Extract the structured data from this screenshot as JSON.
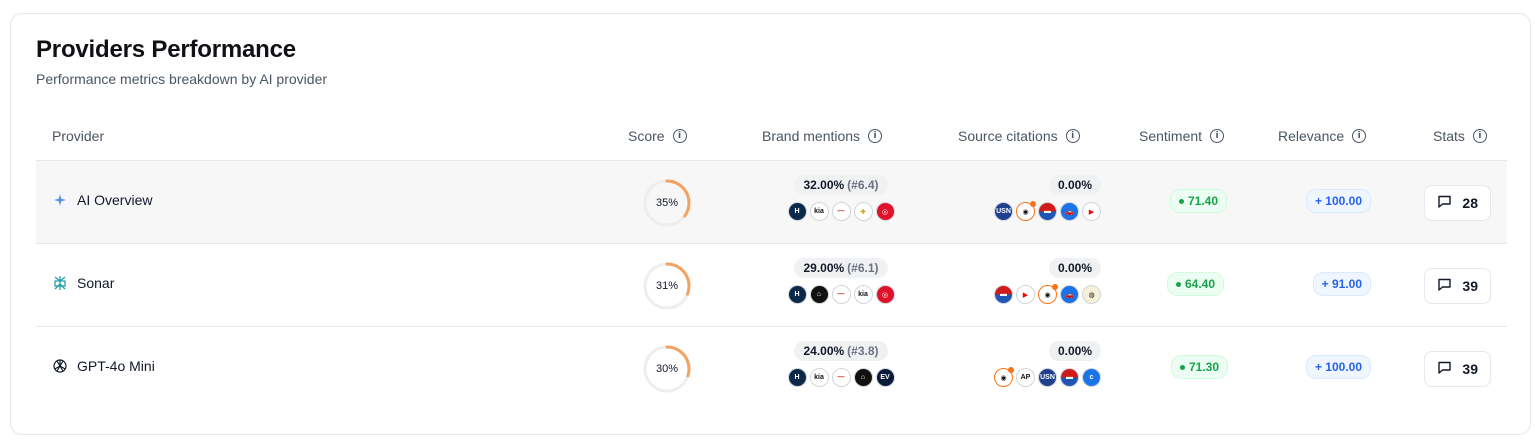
{
  "header": {
    "title": "Providers Performance",
    "subtitle": "Performance metrics breakdown by AI provider"
  },
  "columns": {
    "provider": "Provider",
    "score": "Score",
    "brand_mentions": "Brand mentions",
    "source_citations": "Source citations",
    "sentiment": "Sentiment",
    "relevance": "Relevance",
    "stats": "Stats"
  },
  "rows": [
    {
      "provider": "AI Overview",
      "icon": "sparkle-icon",
      "score": 35,
      "score_label": "35%",
      "mentions_value": "32.00%",
      "mentions_rank": "(#6.4)",
      "mention_logos": [
        "hyundai",
        "kia",
        "honda",
        "chevrolet",
        "toyota"
      ],
      "citations_value": "0.00%",
      "citation_logos": [
        "usnews",
        "caranddriver",
        "edmunds",
        "cars",
        "youtube"
      ],
      "sentiment": "71.40",
      "relevance": "+ 100.00",
      "stats": "28"
    },
    {
      "provider": "Sonar",
      "icon": "perplexity-icon",
      "score": 31,
      "score_label": "31%",
      "mentions_value": "29.00%",
      "mentions_rank": "(#6.1)",
      "mention_logos": [
        "hyundai",
        "home",
        "honda",
        "kia",
        "toyota"
      ],
      "citations_value": "0.00%",
      "citation_logos": [
        "edmunds",
        "youtube",
        "caranddriver",
        "cars",
        "kbb"
      ],
      "sentiment": "64.40",
      "relevance": "+ 91.00",
      "stats": "39"
    },
    {
      "provider": "GPT-4o Mini",
      "icon": "openai-icon",
      "score": 30,
      "score_label": "30%",
      "mentions_value": "24.00%",
      "mentions_rank": "(#3.8)",
      "mention_logos": [
        "hyundai",
        "kia",
        "honda",
        "home",
        "ev"
      ],
      "citations_value": "0.00%",
      "citation_logos": [
        "caranddriver",
        "ap",
        "usnews",
        "edmunds",
        "classic"
      ],
      "sentiment": "71.30",
      "relevance": "+ 100.00",
      "stats": "39"
    }
  ],
  "colors": {
    "score_arc": "#f4a261",
    "score_track": "#eeeeee",
    "sentiment": "#16a34a",
    "relevance": "#2563eb"
  }
}
